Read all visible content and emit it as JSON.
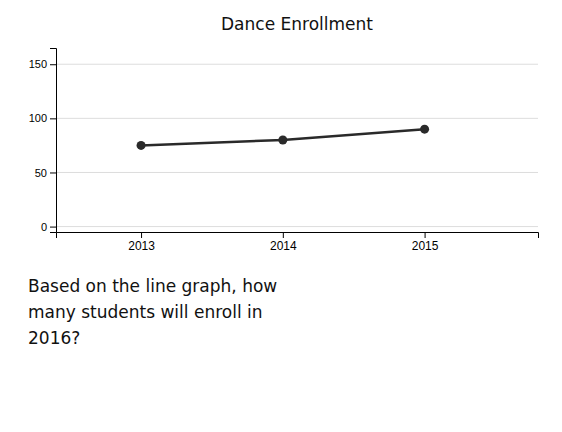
{
  "chart_data": {
    "type": "line",
    "title": "Dance Enrollment",
    "x": [
      2013,
      2014,
      2015
    ],
    "values": [
      75,
      80,
      90
    ],
    "xlim": [
      2012.4,
      2015.8
    ],
    "ylim": [
      -5,
      165
    ],
    "xticks": [
      2013,
      2014,
      2015
    ],
    "yticks": [
      0,
      50,
      100,
      150
    ],
    "color": "#2a2a2a",
    "marker": "circle",
    "grid": true,
    "annotation": "Based on the line graph, how\nmany students will enroll in\n2016?"
  }
}
